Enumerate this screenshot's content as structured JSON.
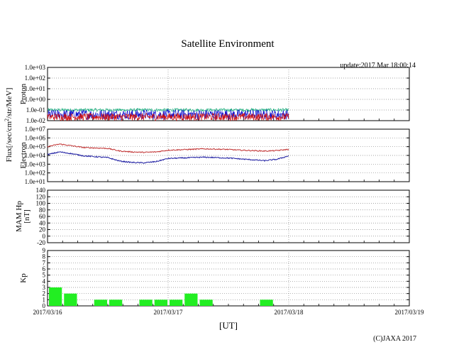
{
  "title": "Satellite Environment",
  "update_text": "update:2017 Mar 18:00:14",
  "copyright": "(C)JAXA 2017",
  "x_unit": "[UT]",
  "date_labels": [
    "2017/03/16",
    "2017/03/17",
    "2017/03/18",
    "2017/03/19"
  ],
  "flux_label_parts": [
    "Flux[/sec/cm",
    "2",
    "/str/MeV]"
  ],
  "colors": {
    "series_green": "#20b080",
    "series_blue": "#1010d0",
    "series_red": "#d01010",
    "electron_red": "#c03030",
    "electron_blue": "#1a1aa0",
    "kp_bar": "#22ee22",
    "grid": "#888888",
    "frame": "#000000"
  },
  "chart_data": [
    {
      "id": "proton",
      "type": "line",
      "ylabel": "Proton",
      "yscale": "log",
      "ylim": [
        0.01,
        1000
      ],
      "yticks": [
        "1.0e-02",
        "1.0e-01",
        "1.0e+00",
        "1.0e+01",
        "1.0e+02",
        "1.0e+03"
      ],
      "xlim_days": [
        0,
        3
      ],
      "data_end_day": 2.0,
      "series": [
        {
          "name": "proton-green",
          "color": "#20b080",
          "band_log": [
            -1.15,
            -0.85
          ]
        },
        {
          "name": "proton-blue",
          "color": "#1010d0",
          "band_log": [
            -1.9,
            -0.95
          ]
        },
        {
          "name": "proton-red",
          "color": "#d01010",
          "band_log": [
            -2.0,
            -1.3
          ]
        }
      ]
    },
    {
      "id": "electron",
      "type": "line",
      "ylabel": "Electron",
      "yscale": "log",
      "ylim": [
        10,
        10000000
      ],
      "yticks": [
        "1.0e+01",
        "1.0e+02",
        "1.0e+03",
        "1.0e+04",
        "1.0e+05",
        "1.0e+06",
        "1.0e+07"
      ],
      "xlim_days": [
        0,
        3
      ],
      "series": [
        {
          "name": "electron-red",
          "color": "#c03030",
          "x_days": [
            0.0,
            0.1,
            0.2,
            0.3,
            0.4,
            0.5,
            0.6,
            0.7,
            0.8,
            0.9,
            1.0,
            1.1,
            1.2,
            1.3,
            1.4,
            1.5,
            1.6,
            1.7,
            1.8,
            1.9,
            2.0
          ],
          "log10_values": [
            5.0,
            5.3,
            5.1,
            4.9,
            4.85,
            4.8,
            4.5,
            4.4,
            4.35,
            4.4,
            4.6,
            4.65,
            4.7,
            4.75,
            4.72,
            4.68,
            4.6,
            4.55,
            4.5,
            4.55,
            4.7
          ]
        },
        {
          "name": "electron-blue",
          "color": "#1a1aa0",
          "x_days": [
            0.0,
            0.1,
            0.2,
            0.3,
            0.4,
            0.5,
            0.6,
            0.7,
            0.8,
            0.9,
            1.0,
            1.1,
            1.2,
            1.3,
            1.4,
            1.5,
            1.6,
            1.7,
            1.8,
            1.9,
            2.0
          ],
          "log10_values": [
            4.1,
            4.4,
            4.2,
            3.95,
            3.85,
            3.75,
            3.35,
            3.2,
            3.15,
            3.3,
            3.65,
            3.7,
            3.75,
            3.8,
            3.75,
            3.7,
            3.6,
            3.5,
            3.4,
            3.55,
            3.95
          ]
        }
      ]
    },
    {
      "id": "mam",
      "type": "line",
      "ylabel": [
        "MAM Hp",
        "[nT]"
      ],
      "ylim": [
        -20,
        140
      ],
      "yticks": [
        "-20",
        "0",
        "20",
        "40",
        "60",
        "80",
        "100",
        "120",
        "140"
      ],
      "xlim_days": [
        0,
        3
      ],
      "series": []
    },
    {
      "id": "kp",
      "type": "bar",
      "ylabel": "Kp",
      "ylim": [
        0,
        9
      ],
      "yticks": [
        "0",
        "1",
        "2",
        "3",
        "4",
        "5",
        "6",
        "7",
        "8",
        "9"
      ],
      "xlim_days": [
        0,
        3
      ],
      "bar_width_days": 0.125,
      "bars": [
        {
          "start_day": 0.0,
          "value": 3
        },
        {
          "start_day": 0.125,
          "value": 2
        },
        {
          "start_day": 0.375,
          "value": 1
        },
        {
          "start_day": 0.5,
          "value": 1
        },
        {
          "start_day": 0.75,
          "value": 1
        },
        {
          "start_day": 0.875,
          "value": 1
        },
        {
          "start_day": 1.0,
          "value": 1
        },
        {
          "start_day": 1.125,
          "value": 2
        },
        {
          "start_day": 1.25,
          "value": 1
        },
        {
          "start_day": 1.75,
          "value": 1
        }
      ]
    }
  ]
}
